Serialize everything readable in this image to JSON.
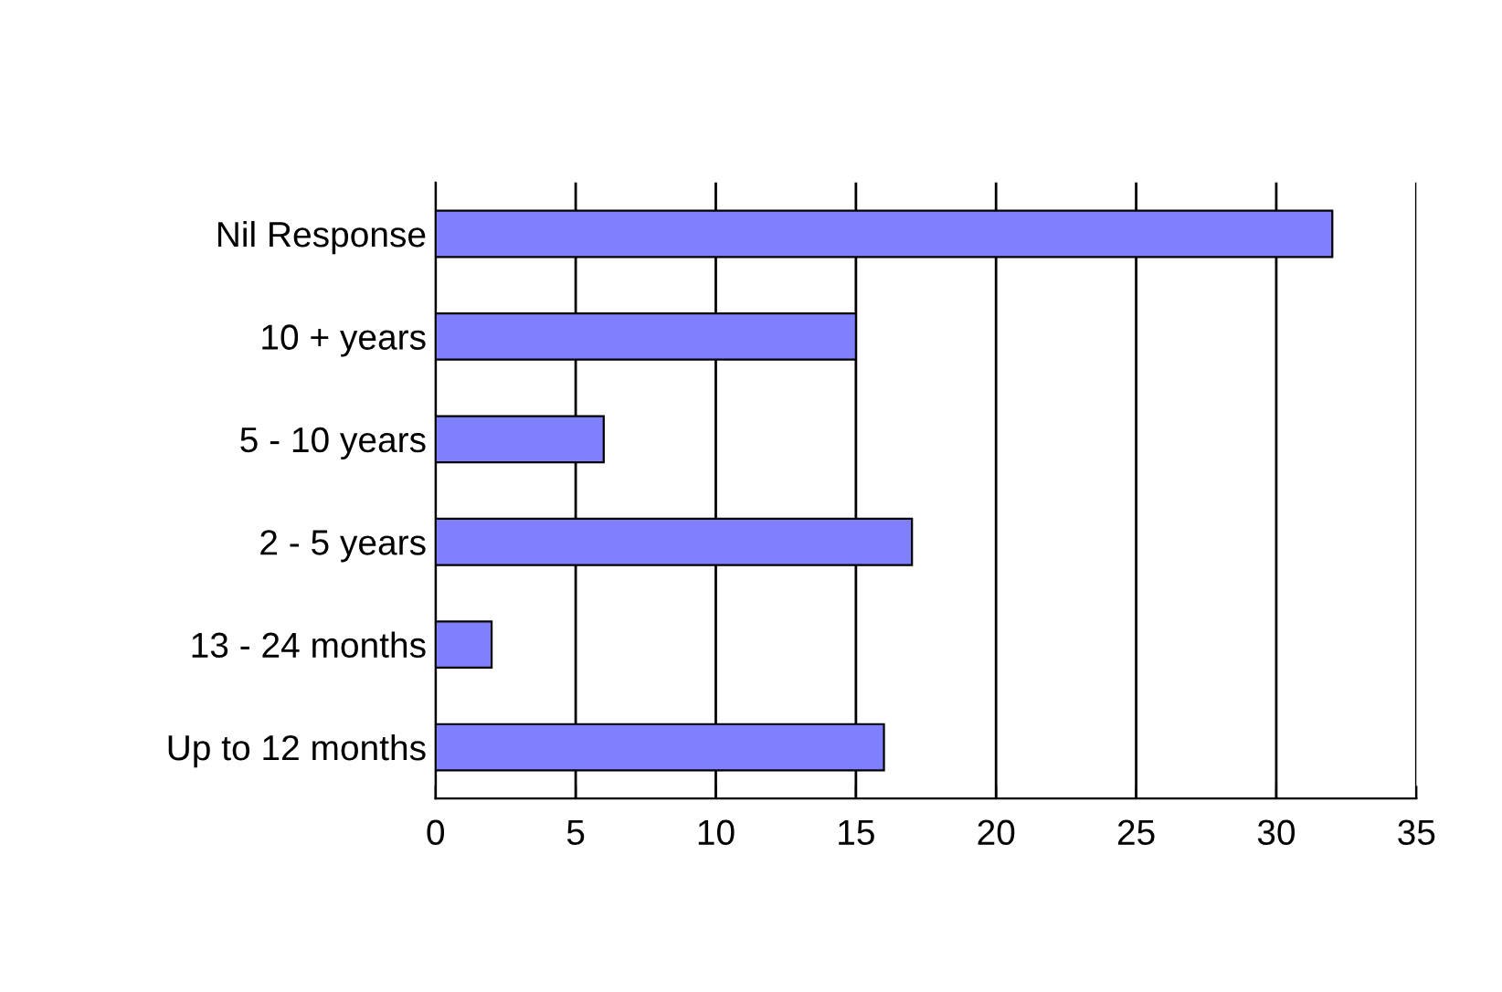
{
  "chart_data": {
    "type": "bar",
    "orientation": "horizontal",
    "categories": [
      "Nil Response",
      "10 + years",
      "5 - 10 years",
      "2 - 5 years",
      "13 - 24 months",
      "Up to 12 months"
    ],
    "values": [
      32,
      15,
      6,
      17,
      2,
      16
    ],
    "color": "#8080ff",
    "xlim": [
      0,
      35
    ],
    "xticks": [
      0,
      5,
      10,
      15,
      20,
      25,
      30,
      35
    ],
    "grid": "x",
    "legend": false
  }
}
